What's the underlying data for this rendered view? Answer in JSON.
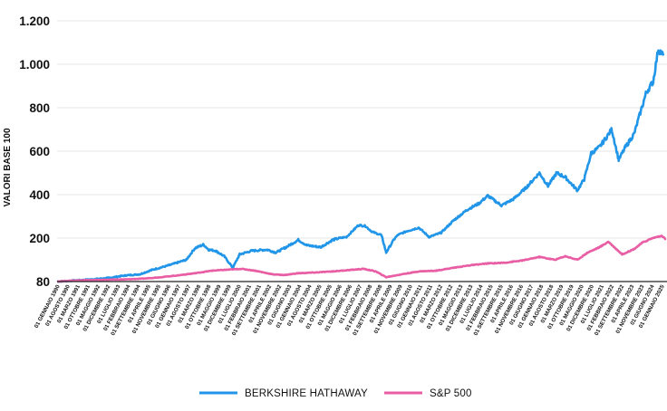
{
  "chart_data": {
    "type": "line",
    "title": "",
    "xlabel": "",
    "ylabel": "VALORI BASE 100",
    "ylim": [
      80,
      1200
    ],
    "yticks": [
      80,
      200,
      400,
      600,
      800,
      1000,
      1200
    ],
    "ytick_labels": [
      "80",
      "200",
      "400",
      "600",
      "800",
      "1.000",
      "1.200"
    ],
    "grid": "horizontal",
    "legend_position": "bottom-center",
    "x_tick_labels": [
      "01 GENNAIO 1990",
      "01 AGOSTO 1990",
      "01 MARZO 1991",
      "01 OTTOBRE 1991",
      "01 MAGGIO 1992",
      "01 DICEMBRE 1992",
      "01 LUGLIO 1993",
      "01 FEBBRAIO 1994",
      "01 SETTEMBRE 1994",
      "01 APRILE 1995",
      "01 NOVEMBRE 1995",
      "01 GIUGNO 1996",
      "01 GENNAIO 1997",
      "01 AGOSTO 1997",
      "01 MARZO 1998",
      "01 OTTOBRE 1998",
      "01 MAGGIO 1999",
      "01 DICEMBRE 1999",
      "01 LUGLIO 2000",
      "01 FEBBRAIO 2001",
      "01 SETTEMBRE 2001",
      "01 APRILE 2002",
      "01 NOVEMBRE 2002",
      "01 GIUGNO 2003",
      "01 GENNAIO 2004",
      "01 AGOSTO 2004",
      "01 MARZO 2005",
      "01 OTTOBRE 2005",
      "01 MAGGIO 2006",
      "01 DICEMBRE 2006",
      "01 LUGLIO 2007",
      "01 FEBBRAIO 2008",
      "01 SETTEMBRE 2008",
      "01 APRILE 2009",
      "01 NOVEMBRE 2009",
      "01 GIUGNO 2010",
      "01 GENNAIO 2011",
      "01 AGOSTO 2011",
      "01 MARZO 2012",
      "01 OTTOBRE 2012",
      "01 MAGGIO 2013",
      "01 DICEMBRE 2013",
      "01 LUGLIO 2014",
      "01 FEBBRAIO 2015",
      "01 SETTEMBRE 2015",
      "01 APRILE 2016",
      "01 NOVEMBRE 2016",
      "01 GIUGNO 2017",
      "01 GENNAIO 2018",
      "01 AGOSTO 2018",
      "01 MARZO 2019",
      "01 OTTOBRE 2019",
      "01 MAGGIO 2020",
      "01 DICEMBRE 2020",
      "01 LUGLIO 2021",
      "01 FEBBRAIO 2022",
      "01 SETTEMBRE 2022",
      "01 APRILE 2023",
      "01 NOVEMBRE 2023",
      "01 GIUGNO 2024",
      "01 GENNAIO 2025"
    ],
    "x_range": [
      1990.0,
      2025.3
    ],
    "series": [
      {
        "name": "BERKSHIRE HATHAWAY",
        "color": "#2196e8",
        "points": [
          [
            1990.0,
            80
          ],
          [
            1991.0,
            83
          ],
          [
            1992.0,
            86
          ],
          [
            1993.0,
            90
          ],
          [
            1994.0,
            97
          ],
          [
            1994.8,
            100
          ],
          [
            1995.5,
            112
          ],
          [
            1996.5,
            125
          ],
          [
            1997.5,
            140
          ],
          [
            1998.0,
            172
          ],
          [
            1998.5,
            182
          ],
          [
            1998.8,
            168
          ],
          [
            1999.2,
            165
          ],
          [
            1999.7,
            150
          ],
          [
            2000.2,
            118
          ],
          [
            2000.6,
            155
          ],
          [
            2001.3,
            165
          ],
          [
            2002.2,
            168
          ],
          [
            2002.7,
            160
          ],
          [
            2003.3,
            175
          ],
          [
            2004.0,
            195
          ],
          [
            2004.5,
            180
          ],
          [
            2005.3,
            175
          ],
          [
            2006.0,
            195
          ],
          [
            2006.8,
            205
          ],
          [
            2007.5,
            260
          ],
          [
            2007.9,
            255
          ],
          [
            2008.3,
            228
          ],
          [
            2008.8,
            215
          ],
          [
            2009.1,
            160
          ],
          [
            2009.8,
            215
          ],
          [
            2010.3,
            232
          ],
          [
            2011.0,
            248
          ],
          [
            2011.6,
            205
          ],
          [
            2012.3,
            225
          ],
          [
            2013.0,
            280
          ],
          [
            2013.8,
            330
          ],
          [
            2014.5,
            360
          ],
          [
            2015.0,
            395
          ],
          [
            2015.8,
            350
          ],
          [
            2016.5,
            380
          ],
          [
            2017.2,
            430
          ],
          [
            2018.0,
            500
          ],
          [
            2018.5,
            440
          ],
          [
            2019.0,
            500
          ],
          [
            2019.5,
            480
          ],
          [
            2020.2,
            420
          ],
          [
            2020.6,
            470
          ],
          [
            2021.0,
            590
          ],
          [
            2021.5,
            620
          ],
          [
            2022.2,
            700
          ],
          [
            2022.6,
            560
          ],
          [
            2023.0,
            620
          ],
          [
            2023.5,
            680
          ],
          [
            2024.2,
            870
          ],
          [
            2024.6,
            920
          ],
          [
            2024.9,
            1070
          ],
          [
            2025.2,
            1040
          ]
        ]
      },
      {
        "name": "S&P 500",
        "color": "#e85da3",
        "points": [
          [
            1990.0,
            80
          ],
          [
            1991.0,
            83
          ],
          [
            1992.0,
            84
          ],
          [
            1993.0,
            85
          ],
          [
            1994.0,
            86
          ],
          [
            1995.0,
            88
          ],
          [
            1996.0,
            92
          ],
          [
            1997.0,
            97
          ],
          [
            1998.0,
            103
          ],
          [
            1999.0,
            110
          ],
          [
            2000.0,
            113
          ],
          [
            2000.7,
            115
          ],
          [
            2001.5,
            110
          ],
          [
            2002.5,
            100
          ],
          [
            2003.2,
            98
          ],
          [
            2004.0,
            103
          ],
          [
            2005.0,
            105
          ],
          [
            2006.0,
            108
          ],
          [
            2007.0,
            112
          ],
          [
            2007.8,
            115
          ],
          [
            2008.5,
            108
          ],
          [
            2009.1,
            92
          ],
          [
            2010.0,
            100
          ],
          [
            2011.0,
            108
          ],
          [
            2012.0,
            110
          ],
          [
            2013.0,
            118
          ],
          [
            2014.0,
            125
          ],
          [
            2015.0,
            130
          ],
          [
            2016.0,
            132
          ],
          [
            2017.0,
            138
          ],
          [
            2018.0,
            148
          ],
          [
            2018.9,
            140
          ],
          [
            2019.5,
            150
          ],
          [
            2020.2,
            140
          ],
          [
            2020.8,
            160
          ],
          [
            2021.5,
            175
          ],
          [
            2022.0,
            190
          ],
          [
            2022.8,
            155
          ],
          [
            2023.5,
            170
          ],
          [
            2024.0,
            188
          ],
          [
            2024.8,
            205
          ],
          [
            2025.1,
            210
          ],
          [
            2025.3,
            198
          ]
        ]
      }
    ]
  }
}
